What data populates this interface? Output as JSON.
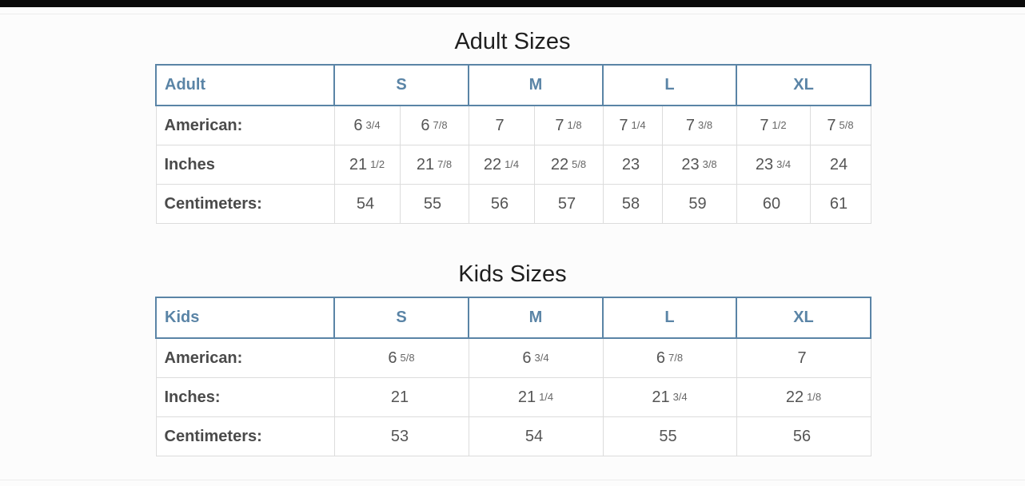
{
  "adult": {
    "title": "Adult Sizes",
    "corner": "Adult",
    "sizes": [
      "S",
      "M",
      "L",
      "XL"
    ],
    "rows": [
      {
        "label": "American:",
        "values": [
          {
            "w": "6",
            "f": "3/4"
          },
          {
            "w": "6",
            "f": "7/8"
          },
          {
            "w": "7",
            "f": ""
          },
          {
            "w": "7",
            "f": "1/8"
          },
          {
            "w": "7",
            "f": "1/4"
          },
          {
            "w": "7",
            "f": "3/8"
          },
          {
            "w": "7",
            "f": "1/2"
          },
          {
            "w": "7",
            "f": "5/8"
          }
        ]
      },
      {
        "label": "Inches",
        "values": [
          {
            "w": "21",
            "f": "1/2"
          },
          {
            "w": "21",
            "f": "7/8"
          },
          {
            "w": "22",
            "f": "1/4"
          },
          {
            "w": "22",
            "f": "5/8"
          },
          {
            "w": "23",
            "f": ""
          },
          {
            "w": "23",
            "f": "3/8"
          },
          {
            "w": "23",
            "f": "3/4"
          },
          {
            "w": "24",
            "f": ""
          }
        ]
      },
      {
        "label": "Centimeters:",
        "values": [
          {
            "w": "54",
            "f": ""
          },
          {
            "w": "55",
            "f": ""
          },
          {
            "w": "56",
            "f": ""
          },
          {
            "w": "57",
            "f": ""
          },
          {
            "w": "58",
            "f": ""
          },
          {
            "w": "59",
            "f": ""
          },
          {
            "w": "60",
            "f": ""
          },
          {
            "w": "61",
            "f": ""
          }
        ]
      }
    ]
  },
  "kids": {
    "title": "Kids Sizes",
    "corner": "Kids",
    "sizes": [
      "S",
      "M",
      "L",
      "XL"
    ],
    "rows": [
      {
        "label": "American:",
        "values": [
          {
            "w": "6",
            "f": "5/8"
          },
          {
            "w": "6",
            "f": "3/4"
          },
          {
            "w": "6",
            "f": "7/8"
          },
          {
            "w": "7",
            "f": ""
          }
        ]
      },
      {
        "label": "Inches:",
        "values": [
          {
            "w": "21",
            "f": ""
          },
          {
            "w": "21",
            "f": "1/4"
          },
          {
            "w": "21",
            "f": "3/4"
          },
          {
            "w": "22",
            "f": "1/8"
          }
        ]
      },
      {
        "label": "Centimeters:",
        "values": [
          {
            "w": "53",
            "f": ""
          },
          {
            "w": "54",
            "f": ""
          },
          {
            "w": "55",
            "f": ""
          },
          {
            "w": "56",
            "f": ""
          }
        ]
      }
    ]
  },
  "colors": {
    "header_accent": "#5a84a6",
    "label_text": "#4a4a4a",
    "cell_text": "#555555",
    "grid": "#dcdcdc"
  }
}
